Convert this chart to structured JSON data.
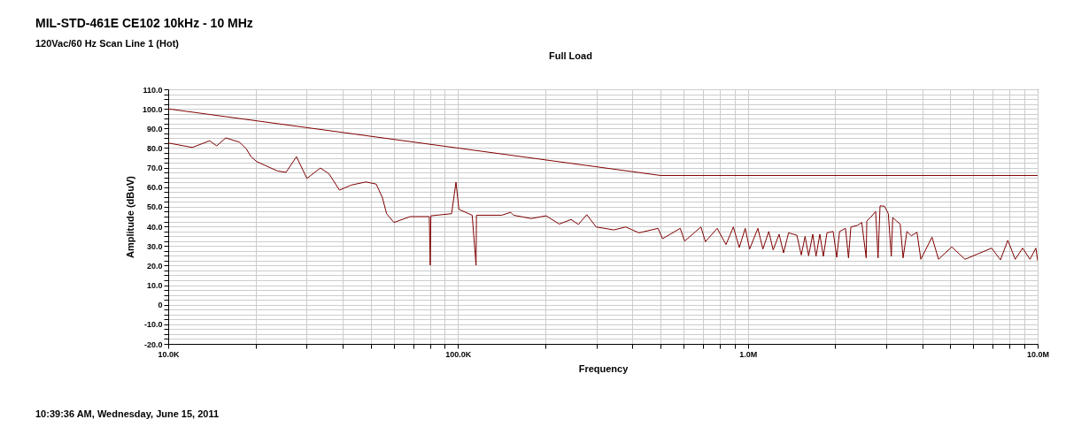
{
  "chart_data": {
    "type": "line",
    "title": "MIL-STD-461E CE102 10kHz - 10 MHz",
    "subtitle": "120Vac/60 Hz Scan Line 1 (Hot)",
    "xlabel": "Frequency",
    "ylabel": "Amplitude (dBuV)",
    "annotations": [
      "Full Load",
      "10:39:36 AM, Wednesday, June 15, 2011"
    ],
    "log": "x",
    "grid": true,
    "line_style": "solid",
    "xlim": [
      10000,
      10000000
    ],
    "xticks": [
      {
        "value": 10000,
        "label": "10.0K"
      },
      {
        "value": 20000,
        "label": null
      },
      {
        "value": 30000,
        "label": null
      },
      {
        "value": 40000,
        "label": null
      },
      {
        "value": 50000,
        "label": null
      },
      {
        "value": 60000,
        "label": null
      },
      {
        "value": 70000,
        "label": null
      },
      {
        "value": 80000,
        "label": null
      },
      {
        "value": 90000,
        "label": null
      },
      {
        "value": 100000,
        "label": "100.0K"
      },
      {
        "value": 200000,
        "label": null
      },
      {
        "value": 300000,
        "label": null
      },
      {
        "value": 400000,
        "label": null
      },
      {
        "value": 500000,
        "label": null
      },
      {
        "value": 600000,
        "label": null
      },
      {
        "value": 700000,
        "label": null
      },
      {
        "value": 800000,
        "label": null
      },
      {
        "value": 900000,
        "label": null
      },
      {
        "value": 1000000,
        "label": "1.0M"
      },
      {
        "value": 2000000,
        "label": null
      },
      {
        "value": 3000000,
        "label": null
      },
      {
        "value": 4000000,
        "label": null
      },
      {
        "value": 5000000,
        "label": null
      },
      {
        "value": 6000000,
        "label": null
      },
      {
        "value": 7000000,
        "label": null
      },
      {
        "value": 8000000,
        "label": null
      },
      {
        "value": 9000000,
        "label": null
      },
      {
        "value": 10000000,
        "label": "10.0M"
      }
    ],
    "ylim": [
      -20,
      110
    ],
    "yticks": [
      {
        "value": -20,
        "label": "-20.0"
      },
      {
        "value": -17.5,
        "label": null
      },
      {
        "value": -15,
        "label": null
      },
      {
        "value": -12.5,
        "label": null
      },
      {
        "value": -10,
        "label": "-10.0"
      },
      {
        "value": -7.5,
        "label": null
      },
      {
        "value": -5,
        "label": null
      },
      {
        "value": -2.5,
        "label": null
      },
      0,
      {
        "value": 2.5,
        "label": null
      },
      {
        "value": 5,
        "label": null
      },
      {
        "value": 7.5,
        "label": null
      },
      {
        "value": 10,
        "label": "10.0"
      },
      {
        "value": 12.5,
        "label": null
      },
      {
        "value": 15,
        "label": null
      },
      {
        "value": 17.5,
        "label": null
      },
      {
        "value": 20,
        "label": "20.0"
      },
      {
        "value": 22.5,
        "label": null
      },
      {
        "value": 25,
        "label": null
      },
      {
        "value": 27.5,
        "label": null
      },
      {
        "value": 30,
        "label": "30.0"
      },
      {
        "value": 32.5,
        "label": null
      },
      {
        "value": 35,
        "label": null
      },
      {
        "value": 37.5,
        "label": null
      },
      {
        "value": 40,
        "label": "40.0"
      },
      {
        "value": 42.5,
        "label": null
      },
      {
        "value": 45,
        "label": null
      },
      {
        "value": 47.5,
        "label": null
      },
      {
        "value": 50,
        "label": "50.0"
      },
      {
        "value": 52.5,
        "label": null
      },
      {
        "value": 55,
        "label": null
      },
      {
        "value": 57.5,
        "label": null
      },
      {
        "value": 60,
        "label": "60.0"
      },
      {
        "value": 62.5,
        "label": null
      },
      {
        "value": 65,
        "label": null
      },
      {
        "value": 67.5,
        "label": null
      },
      {
        "value": 70,
        "label": "70.0"
      },
      {
        "value": 72.5,
        "label": null
      },
      {
        "value": 75,
        "label": null
      },
      {
        "value": 77.5,
        "label": null
      },
      {
        "value": 80,
        "label": "80.0"
      },
      {
        "value": 82.5,
        "label": null
      },
      {
        "value": 85,
        "label": null
      },
      {
        "value": 87.5,
        "label": null
      },
      {
        "value": 90,
        "label": "90.0"
      },
      {
        "value": 92.5,
        "label": null
      },
      {
        "value": 95,
        "label": null
      },
      {
        "value": 97.5,
        "label": null
      },
      {
        "value": 100,
        "label": "100.0"
      },
      {
        "value": 102.5,
        "label": null
      },
      {
        "value": 105,
        "label": null
      },
      {
        "value": 107.5,
        "label": null
      },
      {
        "value": 110,
        "label": "110.0"
      }
    ],
    "series": [
      {
        "color": "#800000",
        "x": [
          10000,
          500000,
          10000000
        ],
        "values": [
          100,
          66,
          66
        ]
      },
      {
        "color": "#800000",
        "x": [
          10000,
          12100,
          13900,
          14700,
          15800,
          17600,
          18600,
          19300,
          20200,
          23800,
          25500,
          27700,
          30100,
          33500,
          35900,
          39000,
          42800,
          48100,
          52200,
          54800,
          56700,
          60100,
          68400,
          79600,
          80200,
          80600,
          95000,
          98400,
          100700,
          111900,
          115400,
          115800,
          141500,
          151900,
          155400,
          178900,
          201200,
          223600,
          245500,
          260300,
          278100,
          299600,
          344800,
          378900,
          421100,
          490100,
          507700,
          584400,
          605300,
          688900,
          713800,
          783900,
          840700,
          891300,
          934300,
          979500,
          1014000,
          1083000,
          1127000,
          1181000,
          1223000,
          1282000,
          1328000,
          1382000,
          1476000,
          1529000,
          1576000,
          1621000,
          1675000,
          1719000,
          1772000,
          1822000,
          1875000,
          1970000,
          2026000,
          2073000,
          2173000,
          2225000,
          2267000,
          2387000,
          2472000,
          2561000,
          2573000,
          2666000,
          2761000,
          2814000,
          2859000,
          2962000,
          3053000,
          3126000,
          3162000,
          3262000,
          3355000,
          3433000,
          3539000,
          3666000,
          3834000,
          3953000,
          4321000,
          4549000,
          5054000,
          5616000,
          6937000,
          7441000,
          7890000,
          8370000,
          8874000,
          9410000,
          9861000,
          10000000
        ],
        "values": [
          82.6,
          80.3,
          83.7,
          81.1,
          85.2,
          83.0,
          79.6,
          75.6,
          73.1,
          68.3,
          67.6,
          75.6,
          64.5,
          69.8,
          66.8,
          58.5,
          61.1,
          62.7,
          61.6,
          54.8,
          46.5,
          42.0,
          45.0,
          45.0,
          20.2,
          45.4,
          46.5,
          62.6,
          48.7,
          45.7,
          20.2,
          45.7,
          45.7,
          47.2,
          45.7,
          44.0,
          45.4,
          41.2,
          43.5,
          41.0,
          46.0,
          39.7,
          38.2,
          39.7,
          36.7,
          39.0,
          33.7,
          39.0,
          32.5,
          39.7,
          32.2,
          39.0,
          30.7,
          39.7,
          29.2,
          39.0,
          28.4,
          39.0,
          28.4,
          37.4,
          28.0,
          36.0,
          26.5,
          36.7,
          35.5,
          25.4,
          34.9,
          25.0,
          36.0,
          24.7,
          36.0,
          24.7,
          36.7,
          37.4,
          24.2,
          37.4,
          39.0,
          23.9,
          39.7,
          40.5,
          42.0,
          23.9,
          42.7,
          45.0,
          47.6,
          23.9,
          50.5,
          50.3,
          46.5,
          24.7,
          44.5,
          42.7,
          41.2,
          23.9,
          37.4,
          35.2,
          37.0,
          23.2,
          34.5,
          23.2,
          29.5,
          23.2,
          28.9,
          22.9,
          32.9,
          23.2,
          28.9,
          23.2,
          28.9,
          22.5
        ]
      }
    ]
  }
}
